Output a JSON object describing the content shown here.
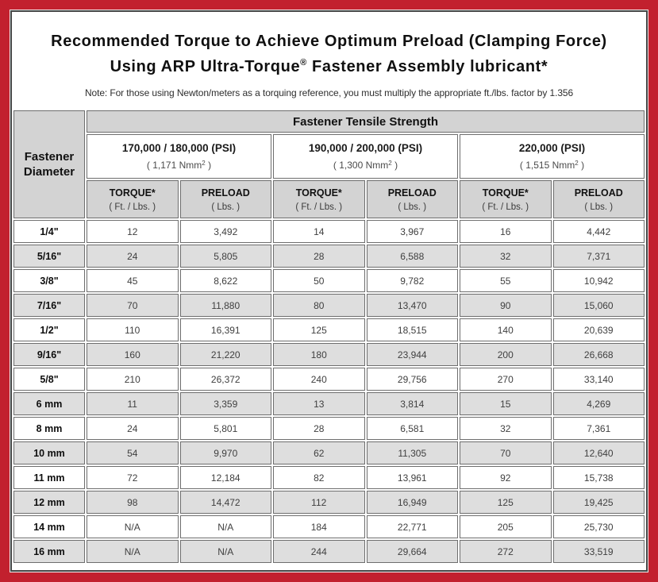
{
  "title": {
    "line1": "Recommended Torque to Achieve Optimum Preload (Clamping Force)",
    "line2_before_sup": "Using ARP Ultra-Torque",
    "line2_sup": "®",
    "line2_after_sup": " Fastener Assembly lubricant*",
    "note": "Note: For those using Newton/meters as a torquing reference, you must multiply the appropriate ft./lbs. factor by 1.356"
  },
  "table": {
    "corner_header_line1": "Fastener",
    "corner_header_line2": "Diameter",
    "main_header": "Fastener Tensile Strength",
    "groups": [
      {
        "psi": "170,000 / 180,000 (PSI)",
        "nmm_before_sup": "( 1,171 Nmm",
        "nmm_sup": "2",
        "nmm_after_sup": " )"
      },
      {
        "psi": "190,000 / 200,000 (PSI)",
        "nmm_before_sup": "( 1,300 Nmm",
        "nmm_sup": "2",
        "nmm_after_sup": " )"
      },
      {
        "psi": "220,000 (PSI)",
        "nmm_before_sup": "( 1,515 Nmm",
        "nmm_sup": "2",
        "nmm_after_sup": " )"
      }
    ],
    "sub_headers": {
      "torque_label": "TORQUE*",
      "torque_unit": "( Ft. / Lbs. )",
      "preload_label": "PRELOAD",
      "preload_unit": "( Lbs. )"
    },
    "rows": [
      {
        "diameter": "1/4\"",
        "values": [
          "12",
          "3,492",
          "14",
          "3,967",
          "16",
          "4,442"
        ]
      },
      {
        "diameter": "5/16\"",
        "values": [
          "24",
          "5,805",
          "28",
          "6,588",
          "32",
          "7,371"
        ]
      },
      {
        "diameter": "3/8\"",
        "values": [
          "45",
          "8,622",
          "50",
          "9,782",
          "55",
          "10,942"
        ]
      },
      {
        "diameter": "7/16\"",
        "values": [
          "70",
          "11,880",
          "80",
          "13,470",
          "90",
          "15,060"
        ]
      },
      {
        "diameter": "1/2\"",
        "values": [
          "110",
          "16,391",
          "125",
          "18,515",
          "140",
          "20,639"
        ]
      },
      {
        "diameter": "9/16\"",
        "values": [
          "160",
          "21,220",
          "180",
          "23,944",
          "200",
          "26,668"
        ]
      },
      {
        "diameter": "5/8\"",
        "values": [
          "210",
          "26,372",
          "240",
          "29,756",
          "270",
          "33,140"
        ]
      },
      {
        "diameter": "6 mm",
        "values": [
          "11",
          "3,359",
          "13",
          "3,814",
          "15",
          "4,269"
        ]
      },
      {
        "diameter": "8 mm",
        "values": [
          "24",
          "5,801",
          "28",
          "6,581",
          "32",
          "7,361"
        ]
      },
      {
        "diameter": "10 mm",
        "values": [
          "54",
          "9,970",
          "62",
          "11,305",
          "70",
          "12,640"
        ]
      },
      {
        "diameter": "11 mm",
        "values": [
          "72",
          "12,184",
          "82",
          "13,961",
          "92",
          "15,738"
        ]
      },
      {
        "diameter": "12 mm",
        "values": [
          "98",
          "14,472",
          "112",
          "16,949",
          "125",
          "19,425"
        ]
      },
      {
        "diameter": "14 mm",
        "values": [
          "N/A",
          "N/A",
          "184",
          "22,771",
          "205",
          "25,730"
        ]
      },
      {
        "diameter": "16 mm",
        "values": [
          "N/A",
          "N/A",
          "244",
          "29,664",
          "272",
          "33,519"
        ]
      }
    ]
  },
  "colors": {
    "frame_red": "#c2202e",
    "inner_border": "#474747",
    "header_gray": "#d3d3d3",
    "alt_row_gray": "#dedede",
    "cell_border": "#6e6e6e"
  }
}
